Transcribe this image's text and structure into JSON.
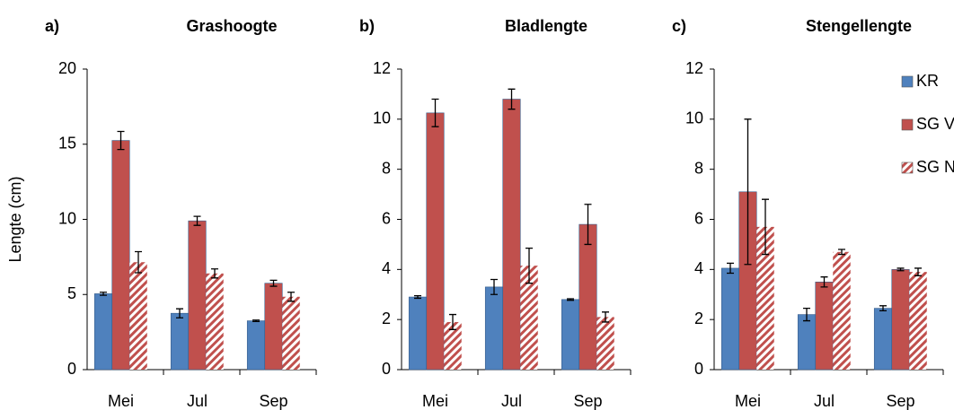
{
  "chart_data": [
    {
      "type": "bar",
      "label": "a)",
      "title": "Grashoogte",
      "y_label": "Lengte (cm)",
      "categories": [
        "Mei",
        "Jul",
        "Sep"
      ],
      "ylim": [
        0,
        20
      ],
      "yticks": [
        0,
        5,
        10,
        15,
        20
      ],
      "legend": false,
      "series": [
        {
          "color": "#4f81bd",
          "values": [
            5.05,
            3.75,
            3.25
          ],
          "errors": [
            0.1,
            0.3,
            0.05
          ]
        },
        {
          "color": "#c0504d",
          "values": [
            15.25,
            9.9,
            5.75
          ],
          "errors": [
            0.6,
            0.3,
            0.2
          ]
        },
        {
          "color": "#c0504d",
          "pattern": "hatch",
          "values": [
            7.15,
            6.4,
            4.85
          ],
          "errors": [
            0.7,
            0.3,
            0.3
          ]
        }
      ]
    },
    {
      "type": "bar",
      "label": "b)",
      "title": "Bladlengte",
      "categories": [
        "Mei",
        "Jul",
        "Sep"
      ],
      "ylim": [
        0,
        12
      ],
      "yticks": [
        0,
        2,
        4,
        6,
        8,
        10,
        12
      ],
      "legend": false,
      "series": [
        {
          "color": "#4f81bd",
          "values": [
            2.9,
            3.3,
            2.8
          ],
          "errors": [
            0.05,
            0.3,
            0.03
          ]
        },
        {
          "color": "#c0504d",
          "values": [
            10.25,
            10.8,
            5.8
          ],
          "errors": [
            0.55,
            0.4,
            0.8
          ]
        },
        {
          "color": "#c0504d",
          "pattern": "hatch",
          "values": [
            1.9,
            4.15,
            2.1
          ],
          "errors": [
            0.3,
            0.7,
            0.2
          ]
        }
      ]
    },
    {
      "type": "bar",
      "label": "c)",
      "title": "Stengellengte",
      "categories": [
        "Mei",
        "Jul",
        "Sep"
      ],
      "ylim": [
        0,
        12
      ],
      "yticks": [
        0,
        2,
        4,
        6,
        8,
        10,
        12
      ],
      "legend": true,
      "series": [
        {
          "name": "KR",
          "color": "#4f81bd",
          "values": [
            4.05,
            2.2,
            2.45
          ],
          "errors": [
            0.2,
            0.25,
            0.1
          ]
        },
        {
          "name": "SG Voor",
          "color": "#c0504d",
          "values": [
            7.1,
            3.5,
            4.0
          ],
          "errors": [
            2.9,
            0.2,
            0.05
          ]
        },
        {
          "name": "SG Na",
          "color": "#c0504d",
          "pattern": "hatch",
          "values": [
            5.7,
            4.7,
            3.9
          ],
          "errors": [
            1.1,
            0.1,
            0.15
          ]
        }
      ]
    }
  ]
}
